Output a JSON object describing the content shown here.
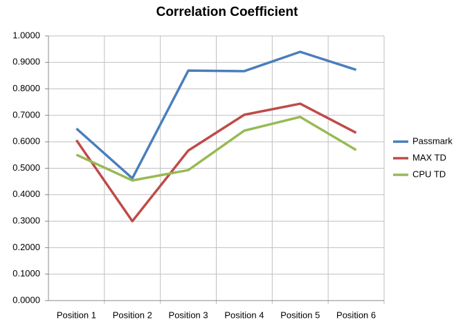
{
  "chart_data": {
    "type": "line",
    "title": "Correlation Coefficient",
    "categories": [
      "Position 1",
      "Position 2",
      "Position 3",
      "Position 4",
      "Position 5",
      "Position 6"
    ],
    "series": [
      {
        "name": "Passmark",
        "color": "#4a7ebb",
        "values": [
          0.65,
          0.462,
          0.869,
          0.867,
          0.94,
          0.872
        ]
      },
      {
        "name": "MAX TD",
        "color": "#be4b48",
        "values": [
          0.606,
          0.3,
          0.567,
          0.702,
          0.744,
          0.634
        ]
      },
      {
        "name": "CPU TD",
        "color": "#98b954",
        "values": [
          0.551,
          0.454,
          0.493,
          0.642,
          0.694,
          0.569
        ]
      }
    ],
    "ylim": [
      0,
      1
    ],
    "yticks": [
      {
        "value": 0,
        "label": "0.0000"
      },
      {
        "value": 0.1,
        "label": "0.1000"
      },
      {
        "value": 0.2,
        "label": "0.2000"
      },
      {
        "value": 0.3,
        "label": "0.3000"
      },
      {
        "value": 0.4,
        "label": "0.4000"
      },
      {
        "value": 0.5,
        "label": "0.5000"
      },
      {
        "value": 0.6,
        "label": "0.6000"
      },
      {
        "value": 0.7,
        "label": "0.7000"
      },
      {
        "value": 0.8,
        "label": "0.8000"
      },
      {
        "value": 0.9,
        "label": "0.9000"
      },
      {
        "value": 1,
        "label": "1.0000"
      }
    ],
    "grid": true,
    "legend": "right"
  }
}
